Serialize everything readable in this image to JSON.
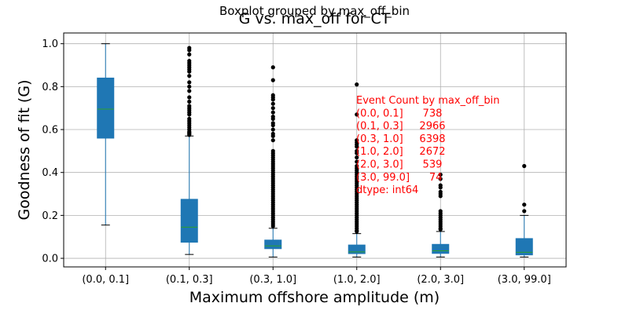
{
  "chart_data": {
    "type": "boxplot",
    "suptitle": "Boxplot grouped by max_off_bin",
    "title": "G vs. max_off for CT",
    "xlabel": "Maximum offshore amplitude (m)",
    "ylabel": "Goodness of fit (G)",
    "ylim": [
      -0.04,
      1.05
    ],
    "yticks": [
      0.0,
      0.2,
      0.4,
      0.6,
      0.8,
      1.0
    ],
    "ytick_labels": [
      "0.0",
      "0.2",
      "0.4",
      "0.6",
      "0.8",
      "1.0"
    ],
    "grid": true,
    "categories": [
      "(0.0, 0.1]",
      "(0.1, 0.3]",
      "(0.3, 1.0]",
      "(1.0, 2.0]",
      "(2.0, 3.0]",
      "(3.0, 99.0]"
    ],
    "boxes": [
      {
        "category": "(0.0, 0.1]",
        "whisker_low": 0.155,
        "q1": 0.56,
        "median": 0.695,
        "q3": 0.84,
        "whisker_high": 1.0,
        "outliers": []
      },
      {
        "category": "(0.1, 0.3]",
        "whisker_low": 0.018,
        "q1": 0.075,
        "median": 0.145,
        "q3": 0.275,
        "whisker_high": 0.57,
        "outliers": [
          0.98,
          0.97,
          0.95,
          0.92,
          0.91,
          0.9,
          0.89,
          0.88,
          0.87,
          0.85,
          0.82,
          0.8,
          0.78,
          0.75,
          0.73,
          0.71,
          0.7,
          0.69,
          0.68,
          0.67,
          0.65,
          0.64,
          0.63,
          0.62,
          0.61,
          0.6,
          0.59,
          0.585,
          0.58,
          0.575
        ]
      },
      {
        "category": "(0.3, 1.0]",
        "whisker_low": 0.006,
        "q1": 0.045,
        "median": 0.058,
        "q3": 0.085,
        "whisker_high": 0.14,
        "outliers": [
          0.89,
          0.83,
          0.76,
          0.75,
          0.74,
          0.72,
          0.7,
          0.68,
          0.66,
          0.65,
          0.63,
          0.62,
          0.6,
          0.58,
          0.57,
          0.55,
          0.5,
          0.49,
          0.48,
          0.47,
          0.46,
          0.45,
          0.44,
          0.43,
          0.42,
          0.41,
          0.4,
          0.39,
          0.38,
          0.37,
          0.36,
          0.35,
          0.34,
          0.33,
          0.32,
          0.31,
          0.3,
          0.29,
          0.28,
          0.27,
          0.26,
          0.25,
          0.24,
          0.23,
          0.22,
          0.21,
          0.2,
          0.19,
          0.18,
          0.17,
          0.16,
          0.15
        ]
      },
      {
        "category": "(1.0, 2.0]",
        "whisker_low": 0.006,
        "q1": 0.022,
        "median": 0.03,
        "q3": 0.062,
        "whisker_high": 0.115,
        "outliers": [
          0.81,
          0.67,
          0.55,
          0.54,
          0.53,
          0.52,
          0.5,
          0.49,
          0.47,
          0.45,
          0.43,
          0.42,
          0.41,
          0.4,
          0.39,
          0.38,
          0.37,
          0.36,
          0.35,
          0.34,
          0.33,
          0.32,
          0.31,
          0.3,
          0.29,
          0.28,
          0.27,
          0.26,
          0.25,
          0.24,
          0.23,
          0.22,
          0.21,
          0.2,
          0.19,
          0.18,
          0.17,
          0.16,
          0.15,
          0.14,
          0.13,
          0.125
        ]
      },
      {
        "category": "(2.0, 3.0]",
        "whisker_low": 0.006,
        "q1": 0.023,
        "median": 0.035,
        "q3": 0.065,
        "whisker_high": 0.125,
        "outliers": [
          0.39,
          0.37,
          0.34,
          0.33,
          0.31,
          0.3,
          0.29,
          0.22,
          0.21,
          0.2,
          0.19,
          0.18,
          0.17,
          0.16,
          0.15,
          0.14,
          0.135
        ]
      },
      {
        "category": "(3.0, 99.0]",
        "whisker_low": 0.006,
        "q1": 0.016,
        "median": 0.028,
        "q3": 0.092,
        "whisker_high": 0.2,
        "outliers": [
          0.43,
          0.25,
          0.22
        ]
      }
    ],
    "annotation": {
      "lines": [
        "Event Count by max_off_bin",
        "(0.0, 0.1]      738",
        "(0.1, 0.3]     2966",
        "(0.3, 1.0]     6398",
        "(1.0, 2.0]     2672",
        "(2.0, 3.0]      539",
        "(3.0, 99.0]      74",
        "dtype: int64"
      ],
      "color": "#ff0000"
    },
    "colors": {
      "box_fill": "#1f77b4",
      "median": "#2ca02c",
      "whisker": "#1f77b4",
      "cap": "#000000",
      "outlier": "#000000",
      "grid": "#b0b0b0",
      "axis": "#000000"
    }
  }
}
